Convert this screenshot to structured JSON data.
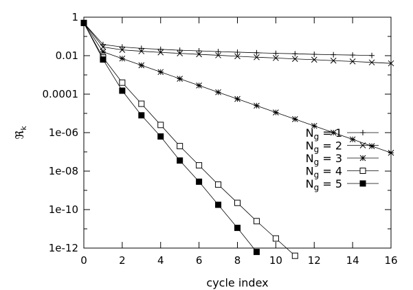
{
  "chart_data": {
    "type": "line",
    "title": "",
    "xlabel": "cycle index",
    "ylabel": "ℜ",
    "ylabel_sub": "k",
    "xlim": [
      0,
      16
    ],
    "ylim_log10": [
      -12,
      0
    ],
    "y_scale": "log",
    "grid": false,
    "legend_position": "right-middle",
    "x_ticks": [
      0,
      2,
      4,
      6,
      8,
      10,
      12,
      14,
      16
    ],
    "x_tick_labels": [
      "0",
      "2",
      "4",
      "6",
      "8",
      "10",
      "12",
      "14",
      "16"
    ],
    "y_ticks_log10": [
      0,
      -2,
      -4,
      -6,
      -8,
      -10,
      -12
    ],
    "y_tick_labels": [
      "1",
      "0.01",
      "0.0001",
      "1e-06",
      "1e-08",
      "1e-10",
      "1e-12"
    ],
    "series": [
      {
        "name": "Ng = 1",
        "legend_base": "N",
        "legend_sub": "g",
        "legend_value": " = 1",
        "marker": "plus",
        "x": [
          0,
          1,
          2,
          3,
          4,
          5,
          6,
          7,
          8,
          9,
          10,
          11,
          12,
          13,
          14,
          15
        ],
        "log10_values": [
          -0.3,
          -1.42,
          -1.55,
          -1.62,
          -1.67,
          -1.72,
          -1.75,
          -1.79,
          -1.82,
          -1.85,
          -1.88,
          -1.9,
          -1.93,
          -1.95,
          -1.97,
          -1.99
        ]
      },
      {
        "name": "Ng = 2",
        "legend_base": "N",
        "legend_sub": "g",
        "legend_value": " = 2",
        "marker": "x",
        "x": [
          0,
          1,
          2,
          3,
          4,
          5,
          6,
          7,
          8,
          9,
          10,
          11,
          12,
          13,
          14,
          15,
          16
        ],
        "log10_values": [
          -0.3,
          -1.55,
          -1.7,
          -1.77,
          -1.83,
          -1.88,
          -1.93,
          -1.98,
          -2.03,
          -2.08,
          -2.12,
          -2.17,
          -2.21,
          -2.26,
          -2.3,
          -2.35,
          -2.4
        ]
      },
      {
        "name": "Ng = 3",
        "legend_base": "N",
        "legend_sub": "g",
        "legend_value": " = 3",
        "marker": "star",
        "x": [
          0,
          1,
          2,
          3,
          4,
          5,
          6,
          7,
          8,
          9,
          10,
          11,
          12,
          13,
          14,
          15,
          16
        ],
        "log10_values": [
          -0.3,
          -1.8,
          -2.15,
          -2.5,
          -2.85,
          -3.2,
          -3.55,
          -3.9,
          -4.25,
          -4.6,
          -4.95,
          -5.3,
          -5.65,
          -6.0,
          -6.35,
          -6.7,
          -7.05
        ]
      },
      {
        "name": "Ng = 4",
        "legend_base": "N",
        "legend_sub": "g",
        "legend_value": " = 4",
        "marker": "open-square",
        "x": [
          0,
          1,
          2,
          3,
          4,
          5,
          6,
          7,
          8,
          9,
          10,
          11
        ],
        "log10_values": [
          -0.3,
          -2.1,
          -3.4,
          -4.5,
          -5.6,
          -6.7,
          -7.7,
          -8.7,
          -9.65,
          -10.6,
          -11.5,
          -12.4
        ]
      },
      {
        "name": "Ng = 5",
        "legend_base": "N",
        "legend_sub": "g",
        "legend_value": " = 5",
        "marker": "filled-square",
        "x": [
          0,
          1,
          2,
          3,
          4,
          5,
          6,
          7,
          8,
          9
        ],
        "log10_values": [
          -0.3,
          -2.2,
          -3.82,
          -5.1,
          -6.2,
          -7.45,
          -8.55,
          -9.75,
          -10.95,
          -12.2
        ]
      }
    ]
  }
}
